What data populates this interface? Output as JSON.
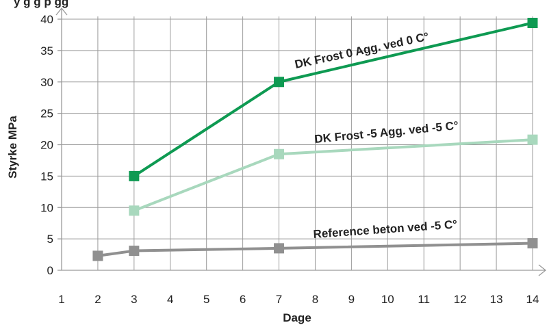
{
  "chart_data": {
    "type": "line",
    "xlabel": "Dage",
    "ylabel": "Styrke MPa",
    "xlim": [
      1,
      14
    ],
    "ylim": [
      0,
      40
    ],
    "x_ticks": [
      "1",
      "2",
      "3",
      "4",
      "5",
      "6",
      "7",
      "8",
      "9",
      "10",
      "11",
      "12",
      "13",
      "14"
    ],
    "y_ticks": [
      "0",
      "5",
      "10",
      "15",
      "20",
      "25",
      "30",
      "35",
      "40"
    ],
    "grid": true,
    "series": [
      {
        "name": "DK Frost 0 Agg. ved 0 C°",
        "color": "#0e9a52",
        "points": [
          {
            "x": 3,
            "y": 15
          },
          {
            "x": 7,
            "y": 30
          },
          {
            "x": 14,
            "y": 39.4
          }
        ]
      },
      {
        "name": "DK Frost -5 Agg. ved -5 C°",
        "color": "#a8d8bd",
        "points": [
          {
            "x": 3,
            "y": 9.5
          },
          {
            "x": 7,
            "y": 18.5
          },
          {
            "x": 14,
            "y": 20.8
          }
        ]
      },
      {
        "name": "Reference beton ved -5 C°",
        "color": "#909090",
        "points": [
          {
            "x": 2,
            "y": 2.3
          },
          {
            "x": 3,
            "y": 3.1
          },
          {
            "x": 7,
            "y": 3.5
          },
          {
            "x": 14,
            "y": 4.3
          }
        ]
      }
    ]
  },
  "header_fragment": "y       g             g       p                        gg"
}
